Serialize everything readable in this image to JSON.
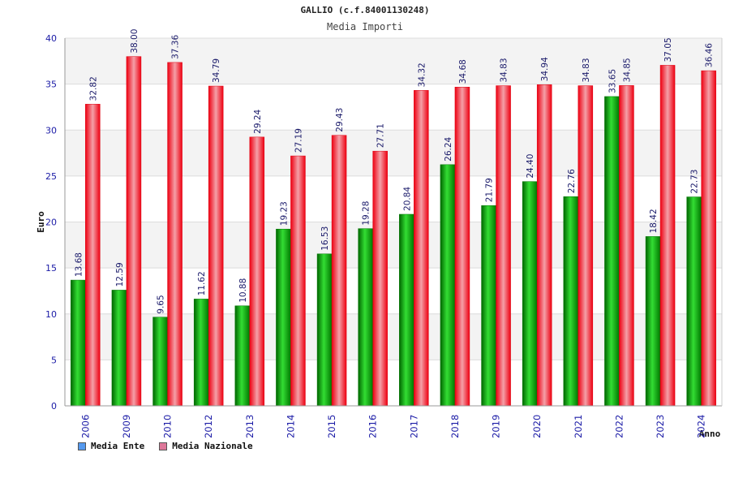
{
  "header": {
    "title": "GALLIO (c.f.84001130248)",
    "subtitle": "Media Importi"
  },
  "chart_data": {
    "type": "bar",
    "title": "GALLIO (c.f.84001130248)",
    "subtitle": "Media Importi",
    "xlabel": "Anno",
    "ylabel": "Euro",
    "ylim": [
      0,
      40
    ],
    "yticks": [
      0,
      5,
      10,
      15,
      20,
      25,
      30,
      35,
      40
    ],
    "grid": true,
    "legend_position": "bottom-left",
    "categories": [
      "2006",
      "2009",
      "2010",
      "2012",
      "2013",
      "2014",
      "2015",
      "2016",
      "2017",
      "2018",
      "2019",
      "2020",
      "2021",
      "2022",
      "2023",
      "2024"
    ],
    "series": [
      {
        "name": "Media Ente",
        "color": "#00aa00",
        "legend_color": "#5599ee",
        "values": [
          13.68,
          12.59,
          9.65,
          11.62,
          10.88,
          19.23,
          16.53,
          19.28,
          20.84,
          26.24,
          21.79,
          24.4,
          22.76,
          33.65,
          18.42,
          22.73
        ]
      },
      {
        "name": "Media Nazionale",
        "color": "#ee1122",
        "legend_color": "#dd7799",
        "values": [
          32.82,
          38.0,
          37.36,
          34.79,
          29.24,
          27.19,
          29.43,
          27.71,
          34.32,
          34.68,
          34.83,
          34.94,
          34.83,
          34.85,
          37.05,
          36.46
        ]
      }
    ]
  }
}
